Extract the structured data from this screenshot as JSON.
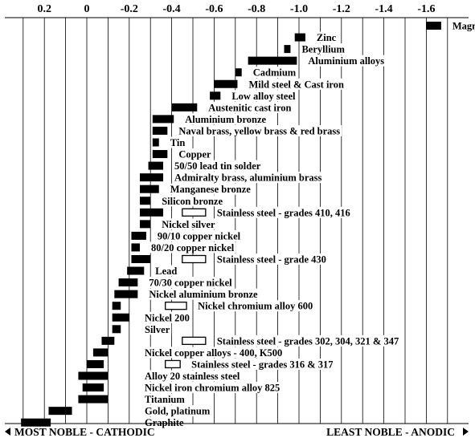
{
  "chart_data": {
    "type": "bar",
    "title": "",
    "xlabel": "",
    "ylabel": "",
    "x_axis": {
      "ticks": [
        0.2,
        0,
        -0.2,
        -0.4,
        -0.6,
        -0.8,
        -1.0,
        -1.2,
        -1.4,
        -1.6
      ],
      "tick_labels": [
        "0.2",
        "0",
        "-0.2",
        "-0.4",
        "-0.6",
        "-0.8",
        "-1.0",
        "-1.2",
        "-1.4",
        "-1.6"
      ],
      "range": [
        0.34,
        -1.78
      ],
      "reversed": true,
      "position": "top",
      "grid": true,
      "minor_grid_step": 0.1
    },
    "series": [
      {
        "style": "filled"
      },
      {
        "style": "hollow"
      }
    ],
    "items": [
      {
        "label": "Magnesium",
        "start": -1.6,
        "end": -1.67,
        "style": "filled"
      },
      {
        "label": "Zinc",
        "start": -0.98,
        "end": -1.03,
        "style": "filled"
      },
      {
        "label": "Beryllium",
        "start": -0.93,
        "end": -0.96,
        "style": "filled"
      },
      {
        "label": "Aluminium alloys",
        "start": -0.76,
        "end": -0.99,
        "style": "filled"
      },
      {
        "label": "Cadmium",
        "start": -0.7,
        "end": -0.73,
        "style": "filled"
      },
      {
        "label": "Mild steel & Cast iron",
        "start": -0.6,
        "end": -0.71,
        "style": "filled"
      },
      {
        "label": "Low alloy steel",
        "start": -0.58,
        "end": -0.63,
        "style": "filled"
      },
      {
        "label": "Austenitic cast iron",
        "start": -0.4,
        "end": -0.52,
        "style": "filled"
      },
      {
        "label": "Aluminium bronze",
        "start": -0.31,
        "end": -0.41,
        "style": "filled"
      },
      {
        "label": "Naval brass, yellow brass & red brass",
        "start": -0.31,
        "end": -0.38,
        "style": "filled"
      },
      {
        "label": "Tin",
        "start": -0.31,
        "end": -0.34,
        "style": "filled"
      },
      {
        "label": "Copper",
        "start": -0.31,
        "end": -0.38,
        "style": "filled"
      },
      {
        "label": "50/50 lead tin solder",
        "start": -0.29,
        "end": -0.36,
        "style": "filled"
      },
      {
        "label": "Admiralty brass, aluminium brass",
        "start": -0.25,
        "end": -0.36,
        "style": "filled"
      },
      {
        "label": "Manganese bronze",
        "start": -0.25,
        "end": -0.34,
        "style": "filled"
      },
      {
        "label": "Silicon bronze",
        "start": -0.25,
        "end": -0.3,
        "style": "filled"
      },
      {
        "label": "Stainless steel  - grades 410, 416",
        "start": -0.25,
        "end": -0.36,
        "style": "filled",
        "hollow_start": -0.45,
        "hollow_end": -0.56
      },
      {
        "label": "Nickel silver",
        "start": -0.25,
        "end": -0.3,
        "style": "filled"
      },
      {
        "label": "90/10 copper nickel",
        "start": -0.21,
        "end": -0.28,
        "style": "filled"
      },
      {
        "label": "80/20 copper nickel",
        "start": -0.21,
        "end": -0.25,
        "style": "filled"
      },
      {
        "label": "Stainless steel  - grade 430",
        "start": -0.21,
        "end": -0.3,
        "style": "filled",
        "hollow_start": -0.45,
        "hollow_end": -0.56
      },
      {
        "label": "Lead",
        "start": -0.19,
        "end": -0.27,
        "style": "filled"
      },
      {
        "label": "70/30 copper nickel",
        "start": -0.15,
        "end": -0.24,
        "style": "filled"
      },
      {
        "label": "Nickel aluminium bronze",
        "start": -0.13,
        "end": -0.24,
        "style": "filled"
      },
      {
        "label": "Nickel chromium alloy 600",
        "start": -0.12,
        "end": -0.16,
        "style": "filled",
        "hollow_start": -0.37,
        "hollow_end": -0.47
      },
      {
        "label": "Nickel 200",
        "start": -0.12,
        "end": -0.2,
        "style": "filled"
      },
      {
        "label": "Silver",
        "start": -0.12,
        "end": -0.16,
        "style": "filled"
      },
      {
        "label": "Stainless steel - grades 302, 304, 321 & 347",
        "start": -0.07,
        "end": -0.13,
        "style": "filled",
        "hollow_start": -0.45,
        "hollow_end": -0.56
      },
      {
        "label": "Nickel copper  alloys - 400, K500",
        "start": -0.03,
        "end": -0.1,
        "style": "filled"
      },
      {
        "label": "Stainless steel - grades 316 & 317",
        "start": 0.0,
        "end": -0.08,
        "style": "filled",
        "hollow_start": -0.37,
        "hollow_end": -0.44
      },
      {
        "label": "Alloy 20 stainless steel",
        "start": 0.04,
        "end": -0.1,
        "style": "filled"
      },
      {
        "label": "Nickel iron chromium alloy 825",
        "start": 0.02,
        "end": -0.08,
        "style": "filled"
      },
      {
        "label": "Titanium",
        "start": 0.04,
        "end": -0.1,
        "style": "filled"
      },
      {
        "label": "Gold, platinum",
        "start": 0.18,
        "end": 0.07,
        "style": "filled"
      },
      {
        "label": "Graphite",
        "start": 0.31,
        "end": 0.17,
        "style": "filled"
      }
    ],
    "legend": "none"
  },
  "footer": {
    "left": "MOST NOBLE - CATHODIC",
    "right": "LEAST NOBLE - ANODIC"
  }
}
